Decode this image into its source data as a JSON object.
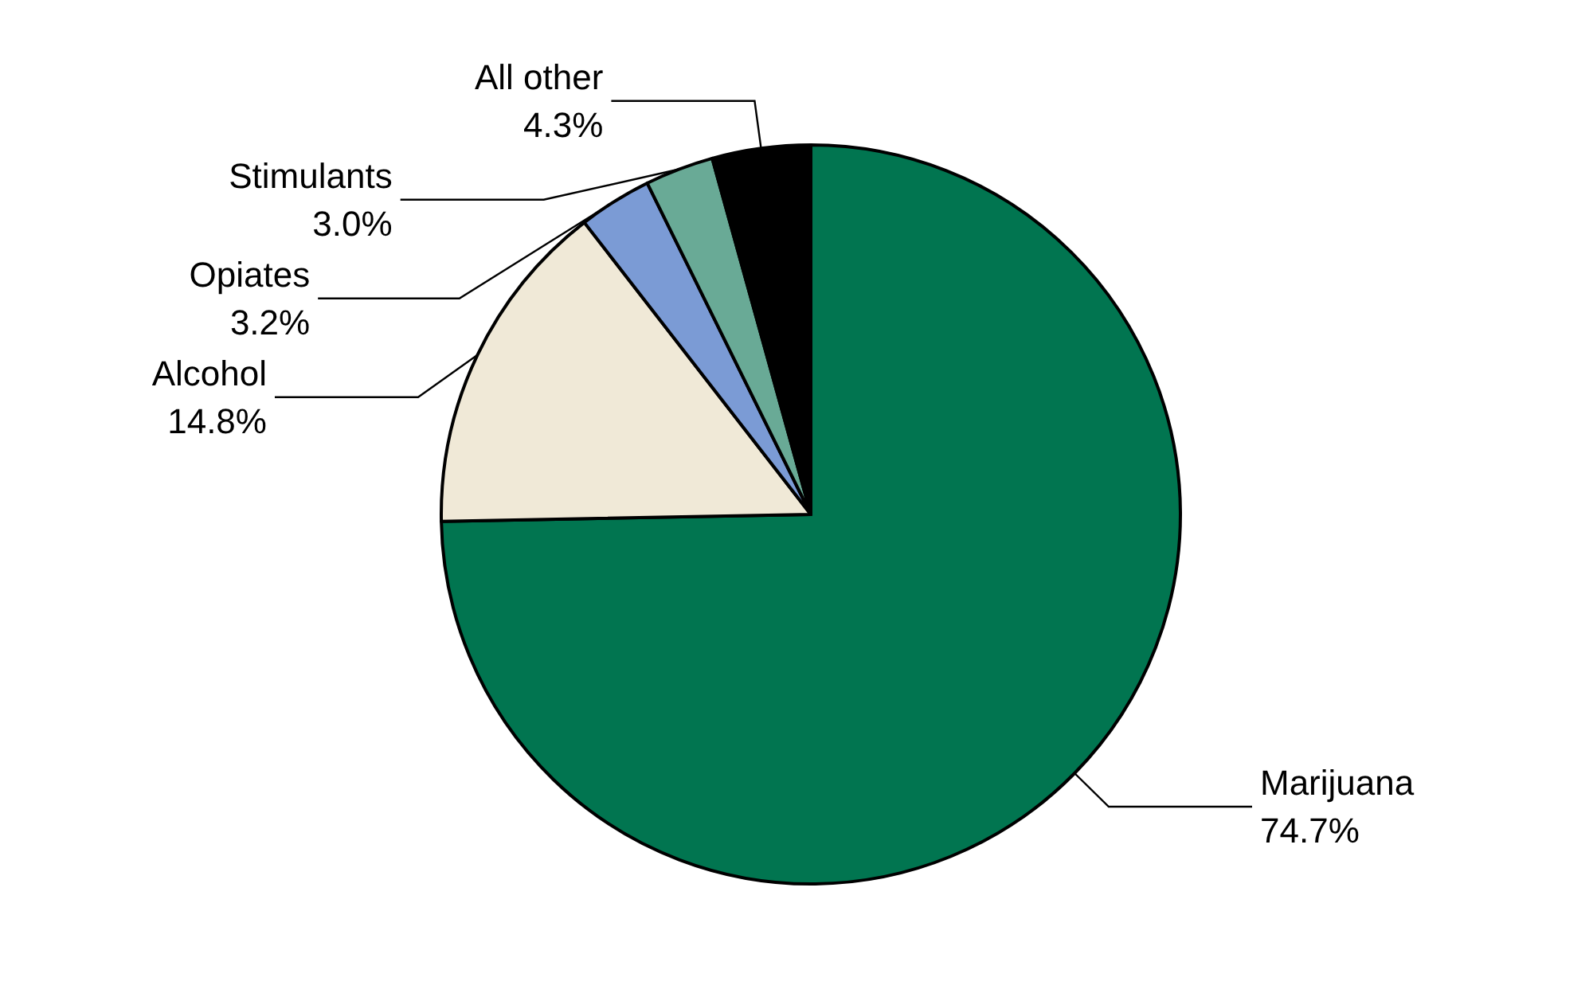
{
  "chart_data": {
    "type": "pie",
    "categories": [
      "Marijuana",
      "Alcohol",
      "Opiates",
      "Stimulants",
      "All other"
    ],
    "values": [
      74.7,
      14.8,
      3.2,
      3.0,
      4.3
    ],
    "colors": [
      "#017550",
      "#f0e9d7",
      "#7b9bd5",
      "#69aa96",
      "#000000"
    ],
    "value_labels": [
      "74.7%",
      "14.8%",
      "3.2%",
      "3.0%",
      "4.3%"
    ]
  }
}
